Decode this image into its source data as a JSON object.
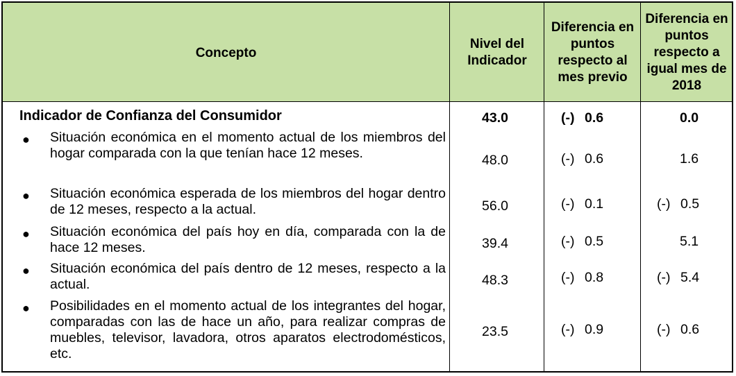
{
  "headers": {
    "concepto": "Concepto",
    "nivel": "Nivel del Indicador",
    "dif_previo": "Diferencia en puntos respecto al mes previo",
    "dif_2018": "Diferencia en puntos respecto a igual mes de 2018"
  },
  "main": {
    "label": "Indicador de Confianza del Consumidor",
    "nivel": "43.0",
    "previo_sign": "(-)",
    "previo": "0.6",
    "anual_sign": "",
    "anual": "0.0"
  },
  "items": [
    {
      "text": "Situación económica en el momento actual de los miembros del hogar comparada con la que tenían hace 12 meses.",
      "nivel": "48.0",
      "previo_sign": "(-)",
      "previo": "0.6",
      "anual_sign": "",
      "anual": "1.6"
    },
    {
      "text": "Situación económica esperada de los miembros del hogar dentro de 12 meses, respecto a la actual.",
      "nivel": "56.0",
      "previo_sign": "(-)",
      "previo": "0.1",
      "anual_sign": "(-)",
      "anual": "0.5"
    },
    {
      "text": "Situación económica del país hoy en día, comparada con la de hace 12 meses.",
      "nivel": "39.4",
      "previo_sign": "(-)",
      "previo": "0.5",
      "anual_sign": "",
      "anual": "5.1"
    },
    {
      "text": "Situación económica del país dentro de 12 meses, respecto a la actual.",
      "nivel": "48.3",
      "previo_sign": "(-)",
      "previo": "0.8",
      "anual_sign": "(-)",
      "anual": "5.4"
    },
    {
      "text": "Posibilidades en el momento actual de los integrantes del hogar, comparadas con las de hace un año, para realizar compras de muebles, televisor, lavadora, otros aparatos electrodomésticos, etc.",
      "nivel": "23.5",
      "previo_sign": "(-)",
      "previo": "0.9",
      "anual_sign": "(-)",
      "anual": "0.6"
    }
  ]
}
